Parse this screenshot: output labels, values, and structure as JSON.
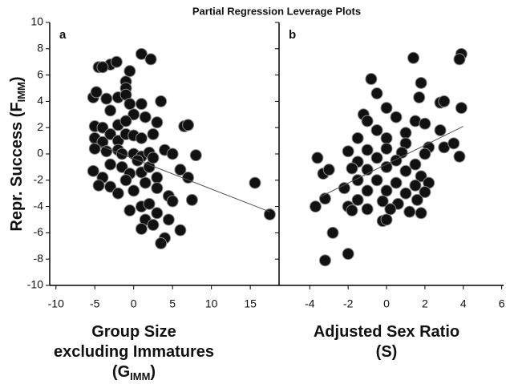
{
  "chart_data": [
    {
      "type": "scatter",
      "title": "Partial Regression Leverage Plots",
      "panel_label": "a",
      "ylabel": [
        "Repr. Success (F",
        "IMM",
        ")"
      ],
      "xlabel_lines": [
        [
          "Group Size"
        ],
        [
          "excluding Immatures"
        ],
        [
          "(G",
          "IMM",
          ")"
        ]
      ],
      "xlim": [
        -10.8,
        18.7
      ],
      "xticks": [
        -10,
        -5,
        0,
        5,
        10,
        15
      ],
      "ylim": [
        -10,
        10
      ],
      "yticks": [
        -10,
        -8,
        -6,
        -4,
        -2,
        0,
        2,
        4,
        6,
        8,
        10
      ],
      "color": "#111111",
      "x": [
        1,
        2.2,
        -3,
        -2.2,
        -4.5,
        -4,
        -1,
        -0.5,
        -1,
        -5.2,
        -4.8,
        -3.5,
        -2,
        -1,
        -0.5,
        1,
        3.5,
        -3,
        0,
        1.5,
        -5,
        -4,
        -2,
        -1,
        3,
        6.5,
        7,
        -5,
        -4,
        -3,
        -2,
        -1,
        0,
        1,
        2.5,
        -5,
        -3.5,
        -2,
        0,
        1,
        2,
        4,
        5,
        8,
        -5.2,
        -4,
        -3,
        -1.5,
        -0.5,
        1,
        2,
        3,
        6,
        7,
        -4.5,
        -3,
        -2,
        -1,
        0,
        1.5,
        3,
        4.5,
        7.5,
        -0.5,
        1,
        2,
        3,
        5,
        1.5,
        2.5,
        4.5,
        6,
        1,
        4,
        3.5,
        15.6,
        17.5,
        0.5,
        -1.5,
        2.5
      ],
      "y": [
        7.6,
        7.2,
        6.8,
        7,
        6.6,
        6.6,
        5.5,
        6.3,
        5,
        4.3,
        4.7,
        4.2,
        4.3,
        4.5,
        3.8,
        3.8,
        4,
        3.3,
        3,
        2.8,
        2.1,
        2,
        2.2,
        2.5,
        2.4,
        2.1,
        2.2,
        1.2,
        0.9,
        1.5,
        1,
        1.5,
        1.4,
        1.2,
        1.5,
        0.4,
        0.2,
        0.3,
        0,
        -0.2,
        0.1,
        0.3,
        0,
        -0.1,
        -1.3,
        -1.8,
        -0.8,
        -1,
        -1.5,
        -1.4,
        -1,
        -1.8,
        -1.2,
        -1.8,
        -2.4,
        -2.5,
        -3,
        -2,
        -2.8,
        -2.2,
        -2.6,
        -3.2,
        -3.5,
        -4.3,
        -4,
        -3.8,
        -4.5,
        -3.6,
        -5,
        -5.4,
        -5,
        -5.8,
        -5.7,
        -6.4,
        -6.8,
        -2.2,
        -4.6,
        -0.5,
        0,
        -0.3
      ],
      "trend": {
        "x": [
          -5.5,
          17.5
        ],
        "y": [
          0.9,
          -4.4
        ],
        "color": "#555555"
      }
    },
    {
      "type": "scatter",
      "panel_label": "b",
      "xlabel_lines": [
        [
          "Adjusted Sex Ratio"
        ],
        [
          "(S)"
        ]
      ],
      "xlim": [
        -5.6,
        6.1
      ],
      "xticks": [
        -4,
        -2,
        0,
        2,
        4,
        6
      ],
      "ylim": [
        -10,
        10
      ],
      "yticks": [
        -10,
        -8,
        -6,
        -4,
        -2,
        0,
        2,
        4,
        6,
        8,
        10
      ],
      "color": "#111111",
      "x": [
        3.9,
        3.8,
        1.4,
        1.8,
        -0.8,
        1.7,
        -0.5,
        2.8,
        3,
        3.9,
        -1.2,
        0,
        -1,
        0.5,
        1.5,
        2,
        -0.5,
        1,
        2.8,
        -1.5,
        0,
        1,
        2.2,
        3,
        3.5,
        3.8,
        -2,
        -1,
        0,
        0.8,
        2,
        -1.5,
        -0.5,
        0.5,
        1.5,
        -3.6,
        -1.8,
        -1,
        0,
        1,
        1.8,
        -3.3,
        -3,
        -1.5,
        -0.5,
        0.5,
        1.5,
        2.2,
        -2.2,
        -1,
        0,
        1,
        2,
        -3.2,
        -1.5,
        -0.2,
        0.6,
        1.6,
        -3.7,
        -2,
        -1,
        0.2,
        1.2,
        1.8,
        -1.8,
        -0.2,
        0,
        -2.8,
        -2,
        -3.2
      ],
      "y": [
        7.6,
        7.2,
        7.3,
        5.4,
        5.7,
        4.3,
        4.6,
        3.9,
        4,
        3.5,
        3,
        3.5,
        2.5,
        2.8,
        2.5,
        2.3,
        1.8,
        1.6,
        1.8,
        1.2,
        1.2,
        0.8,
        0.5,
        0.5,
        0.8,
        -0.2,
        0.2,
        0.3,
        0.4,
        0.1,
        0,
        -0.6,
        -0.3,
        -0.5,
        -0.8,
        -0.3,
        -1.1,
        -1.2,
        -1,
        -1.3,
        -1.7,
        -1.5,
        -1.2,
        -2,
        -2,
        -2.2,
        -2.4,
        -2.2,
        -2.6,
        -2.8,
        -2.8,
        -3,
        -2.9,
        -3.4,
        -3.5,
        -3.6,
        -3.8,
        -3.5,
        -4,
        -4,
        -4.2,
        -4.2,
        -4.4,
        -4.5,
        -4.3,
        -5.1,
        -5,
        -6,
        -7.6,
        -8.1
      ],
      "trend": {
        "x": [
          -3.5,
          4
        ],
        "y": [
          -3.3,
          2.1
        ],
        "color": "#555555"
      }
    }
  ]
}
